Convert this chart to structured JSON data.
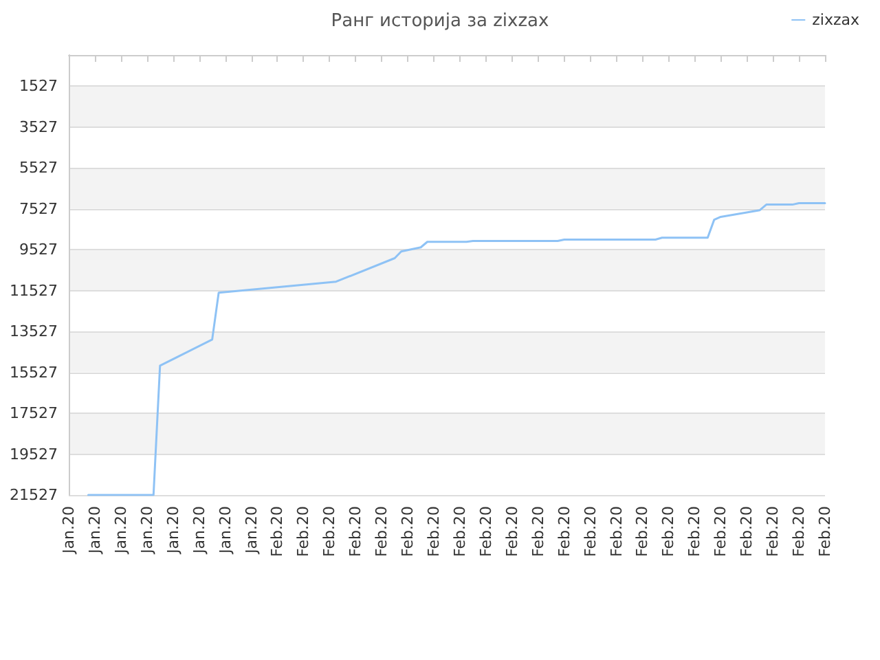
{
  "chart_data": {
    "type": "line",
    "title": "Ранг историја за zixzax",
    "categories": [
      "Jan.20",
      null,
      null,
      null,
      "Jan.20",
      null,
      null,
      null,
      "Jan.20",
      null,
      null,
      null,
      "Jan.20",
      null,
      null,
      null,
      "Jan.20",
      null,
      null,
      null,
      "Jan.20",
      null,
      null,
      null,
      "Jan.20",
      null,
      null,
      null,
      "Jan.20",
      null,
      null,
      null,
      "Feb.20",
      null,
      null,
      null,
      "Feb.20",
      null,
      null,
      null,
      "Feb.20",
      null,
      null,
      null,
      "Feb.20",
      null,
      null,
      null,
      "Feb.20",
      null,
      null,
      null,
      "Feb.20",
      null,
      null,
      null,
      "Feb.20",
      null,
      null,
      null,
      "Feb.20",
      null,
      null,
      null,
      "Feb.20",
      null,
      null,
      null,
      "Feb.20",
      null,
      null,
      null,
      "Feb.20",
      null,
      null,
      null,
      "Feb.20",
      null,
      null,
      null,
      "Feb.20",
      null,
      null,
      null,
      "Feb.20",
      null,
      null,
      null,
      "Feb.20",
      null,
      null,
      null,
      "Feb.20",
      null,
      null,
      null,
      "Feb.20",
      null,
      null,
      null,
      "Feb.20",
      null,
      null,
      null,
      "Feb.20",
      null,
      null,
      null,
      "Feb.20",
      null,
      null,
      null,
      "Feb.20",
      null,
      null,
      null,
      "Feb.20"
    ],
    "ylim": [
      21527,
      0
    ],
    "yticks": [
      1527,
      3527,
      5527,
      7527,
      9527,
      11527,
      13527,
      15527,
      17527,
      19527,
      21527
    ],
    "grid": "y",
    "legend": "top right",
    "marker": "none",
    "line_style": "solid",
    "series": [
      {
        "name": "zixzax",
        "color": "#8ec2f5",
        "values": [
          null,
          null,
          null,
          21527,
          null,
          null,
          null,
          null,
          null,
          null,
          null,
          null,
          null,
          21527,
          15200,
          null,
          null,
          null,
          null,
          null,
          null,
          null,
          13920,
          11630,
          null,
          null,
          null,
          null,
          null,
          null,
          null,
          null,
          null,
          null,
          null,
          null,
          null,
          null,
          null,
          null,
          null,
          11090,
          null,
          null,
          null,
          null,
          null,
          null,
          null,
          null,
          9940,
          9610,
          null,
          null,
          9410,
          9140,
          null,
          null,
          null,
          null,
          null,
          9140,
          9100,
          null,
          null,
          null,
          null,
          null,
          null,
          null,
          null,
          null,
          null,
          null,
          null,
          9100,
          9030,
          null,
          null,
          null,
          null,
          null,
          null,
          null,
          null,
          null,
          null,
          null,
          null,
          null,
          9030,
          8940,
          null,
          null,
          null,
          null,
          null,
          null,
          8940,
          8060,
          7920,
          null,
          null,
          null,
          null,
          null,
          7590,
          7320,
          null,
          null,
          null,
          7320,
          7250,
          null,
          null,
          null,
          7250
        ]
      }
    ]
  }
}
